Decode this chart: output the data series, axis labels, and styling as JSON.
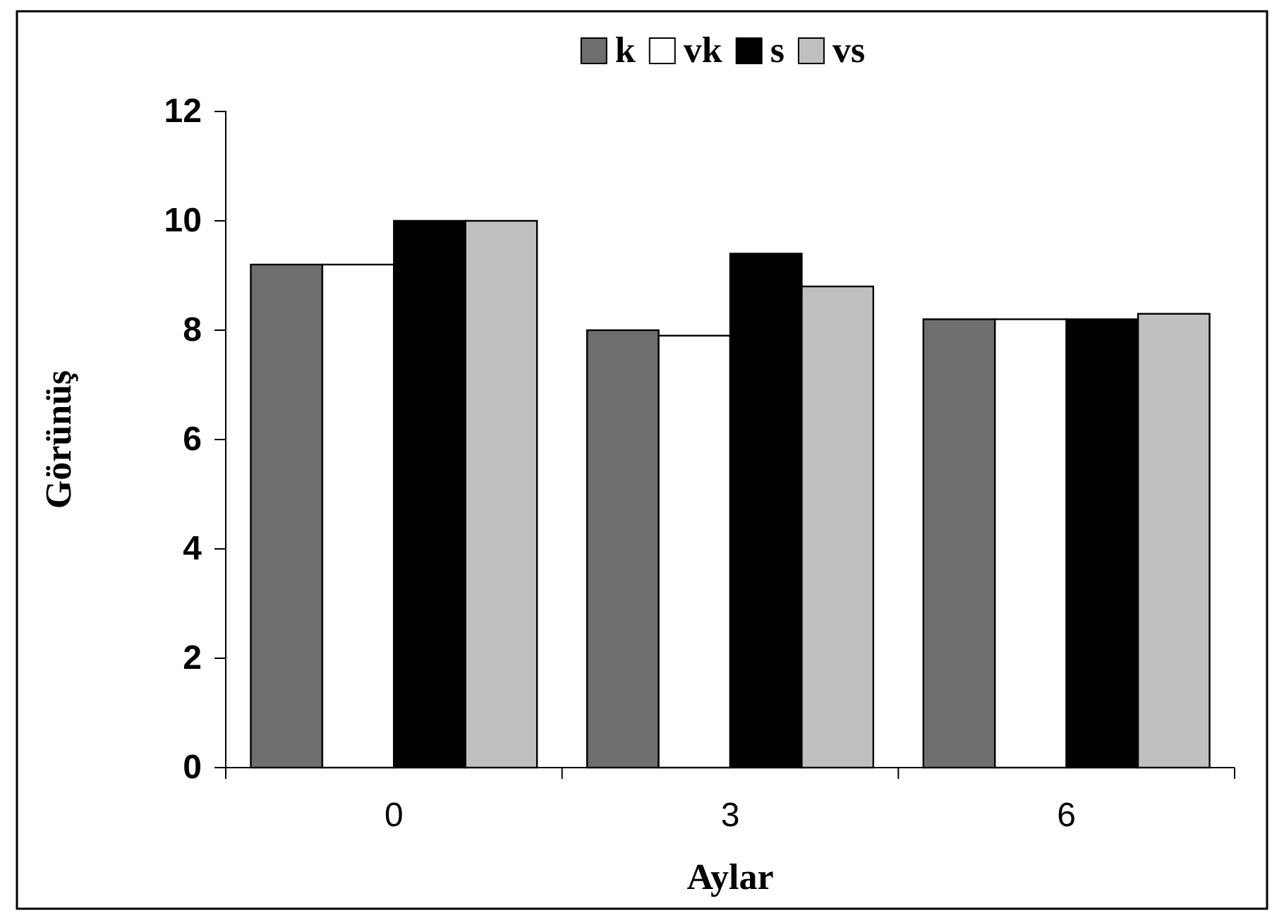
{
  "chart_data": {
    "type": "bar",
    "xlabel": "Aylar",
    "ylabel": "Görünüş",
    "categories": [
      "0",
      "3",
      "6"
    ],
    "series": [
      {
        "name": "k",
        "color": "#6e6e6e",
        "values": [
          9.2,
          8.0,
          8.2
        ]
      },
      {
        "name": "vk",
        "color": "#ffffff",
        "values": [
          9.2,
          7.9,
          8.2
        ]
      },
      {
        "name": "s",
        "color": "#000000",
        "values": [
          10.0,
          9.4,
          8.2
        ]
      },
      {
        "name": "vs",
        "color": "#c0c0c0",
        "values": [
          10.0,
          8.8,
          8.3
        ]
      }
    ],
    "ylim": [
      0,
      12
    ],
    "yticks": [
      0,
      2,
      4,
      6,
      8,
      10,
      12
    ],
    "grid": false,
    "legend": "top"
  }
}
